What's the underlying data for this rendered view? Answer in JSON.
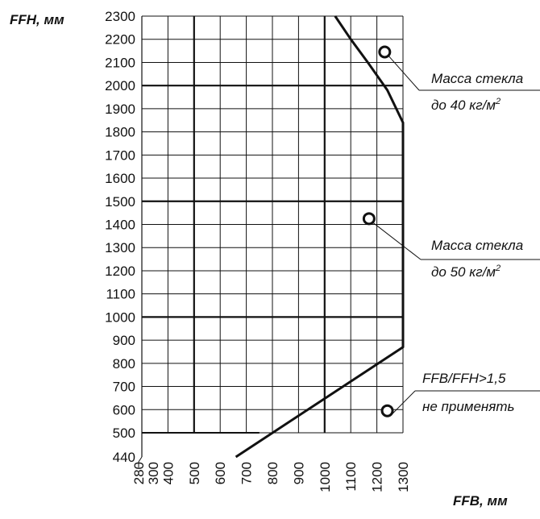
{
  "chart_data": {
    "type": "line",
    "xlabel": "FFB, мм",
    "ylabel": "FFH, мм",
    "xlim": [
      280,
      1300
    ],
    "ylim": [
      440,
      2300
    ],
    "x_ticks": [
      "280",
      "300",
      "400",
      "500",
      "600",
      "700",
      "800",
      "900",
      "1000",
      "1100",
      "1200",
      "1300"
    ],
    "x_tick_values": [
      280,
      300,
      400,
      500,
      600,
      700,
      800,
      900,
      1000,
      1100,
      1200,
      1300
    ],
    "y_ticks": [
      "440",
      "500",
      "600",
      "700",
      "800",
      "900",
      "1000",
      "1100",
      "1200",
      "1300",
      "1400",
      "1500",
      "1600",
      "1700",
      "1800",
      "1900",
      "2000",
      "2100",
      "2200",
      "2300"
    ],
    "y_tick_values": [
      440,
      500,
      600,
      700,
      800,
      900,
      1000,
      1100,
      1200,
      1300,
      1400,
      1500,
      1600,
      1700,
      1800,
      1900,
      2000,
      2100,
      2200,
      2300
    ],
    "minor_grid_x": [
      300,
      400,
      500,
      600,
      700,
      800,
      900,
      1000,
      1100,
      1200,
      1300
    ],
    "major_grid_x": [
      500,
      1000
    ],
    "minor_grid_y": [
      500,
      600,
      700,
      800,
      900,
      1000,
      1100,
      1200,
      1300,
      1400,
      1500,
      1600,
      1700,
      1800,
      1900,
      2000,
      2100,
      2200,
      2300
    ],
    "major_grid_y": [
      1000,
      1500,
      2000
    ],
    "series": [
      {
        "points": [
          {
            "x": 1040,
            "y": 2300
          },
          {
            "x": 1100,
            "y": 2200
          },
          {
            "x": 1165,
            "y": 2100
          },
          {
            "x": 1240,
            "y": 1980
          },
          {
            "x": 1300,
            "y": 1840
          },
          {
            "x": 1300,
            "y": 870
          },
          {
            "x": 660,
            "y": 440
          }
        ]
      },
      {
        "points": [
          {
            "x": 280,
            "y": 500
          },
          {
            "x": 750,
            "y": 500
          }
        ]
      }
    ],
    "annotations": [
      {
        "line1": "Масса стекла",
        "line2": "до 40 кг/м",
        "superscript": "2",
        "marker": {
          "x": 1230,
          "y": 2145
        }
      },
      {
        "line1": "Масса стекла",
        "line2": "до 50 кг/м",
        "superscript": "2",
        "marker": {
          "x": 1170,
          "y": 1425
        }
      },
      {
        "line1": "FFB/FFH>1,5",
        "line2": "не применять",
        "superscript": "",
        "marker": {
          "x": 1240,
          "y": 595
        }
      }
    ]
  }
}
